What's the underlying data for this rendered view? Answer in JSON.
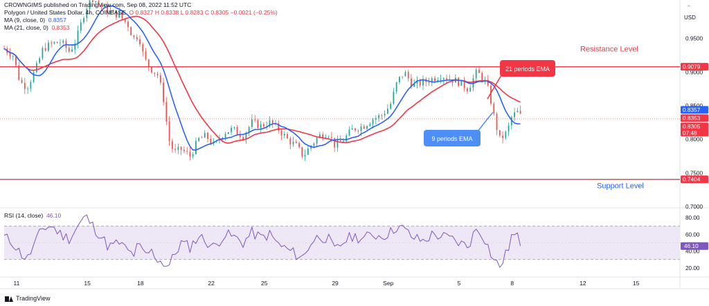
{
  "header": {
    "published": "CROWNGIMS published on TradingView.com, Sep 08, 2022 11:52 UTC",
    "symbol": "Polygon / United States Dollar, 4h, COINBASE",
    "ohlc": "O 0.8327  H 0.8338  L 0.8283  C 0.8305  −0.0021 (−0.25%)",
    "ma9_label": "MA (9, close, 0)",
    "ma9_value": "0.8357",
    "ma21_label": "MA (21, close, 0)",
    "ma21_value": "0.8353",
    "rsi_label": "RSI (14, close)",
    "rsi_value": "46.10"
  },
  "brand": {
    "name": "TradingView"
  },
  "colors": {
    "up": "#26a69a",
    "down": "#ef5350",
    "ma9": "#2962ff",
    "ma21": "#f23645",
    "level": "#f23645",
    "rsi": "#7e57c2",
    "rsi_band": "#ede7f6"
  },
  "chart_data": [
    {
      "type": "candlestick",
      "symbol": "Polygon / United States Dollar, 4h, COINBASE",
      "currency": "USD",
      "ylim": [
        0.7,
        1.0
      ],
      "y_ticks": [
        0.95,
        0.9,
        0.85,
        0.8,
        0.75,
        0.7
      ],
      "y_tick_labels": [
        "0.9500",
        "0.9000",
        "0.8500",
        "0.8000",
        "0.7500",
        "0.7000"
      ],
      "x_ticks": [
        {
          "day": 11,
          "label": "11"
        },
        {
          "day": 15,
          "label": "15"
        },
        {
          "day": 18,
          "label": "18"
        },
        {
          "day": 22,
          "label": "22"
        },
        {
          "day": 25,
          "label": "25"
        },
        {
          "day": 29,
          "label": "29"
        },
        {
          "day": 32,
          "label": "Sep"
        },
        {
          "day": 36,
          "label": "5"
        },
        {
          "day": 39,
          "label": "8"
        },
        {
          "day": 43,
          "label": "12"
        },
        {
          "day": 46,
          "label": "15"
        }
      ],
      "xlim_days": [
        10.3,
        48.4
      ],
      "close_path": [
        [
          10.3,
          0.935
        ],
        [
          10.8,
          0.925
        ],
        [
          11.2,
          0.885
        ],
        [
          11.6,
          0.878
        ],
        [
          12.1,
          0.905
        ],
        [
          12.5,
          0.935
        ],
        [
          13.0,
          0.942
        ],
        [
          13.5,
          0.945
        ],
        [
          14.0,
          0.93
        ],
        [
          14.4,
          0.95
        ],
        [
          14.9,
          0.995
        ],
        [
          15.3,
          1.01
        ],
        [
          15.7,
          1.0
        ],
        [
          16.2,
          0.99
        ],
        [
          16.8,
          0.985
        ],
        [
          17.3,
          0.97
        ],
        [
          17.6,
          0.95
        ],
        [
          17.9,
          0.955
        ],
        [
          18.2,
          0.92
        ],
        [
          18.6,
          0.905
        ],
        [
          19.0,
          0.895
        ],
        [
          19.3,
          0.86
        ],
        [
          19.6,
          0.8
        ],
        [
          19.9,
          0.78
        ],
        [
          20.3,
          0.785
        ],
        [
          20.8,
          0.775
        ],
        [
          21.3,
          0.8
        ],
        [
          21.7,
          0.805
        ],
        [
          22.2,
          0.79
        ],
        [
          22.7,
          0.81
        ],
        [
          23.2,
          0.815
        ],
        [
          23.8,
          0.805
        ],
        [
          24.3,
          0.825
        ],
        [
          24.8,
          0.82
        ],
        [
          25.3,
          0.825
        ],
        [
          25.8,
          0.815
        ],
        [
          26.3,
          0.8
        ],
        [
          26.8,
          0.79
        ],
        [
          27.2,
          0.775
        ],
        [
          27.6,
          0.79
        ],
        [
          28.1,
          0.805
        ],
        [
          28.6,
          0.81
        ],
        [
          29.0,
          0.79
        ],
        [
          29.5,
          0.8
        ],
        [
          30.0,
          0.815
        ],
        [
          30.6,
          0.82
        ],
        [
          31.1,
          0.83
        ],
        [
          31.6,
          0.835
        ],
        [
          32.1,
          0.85
        ],
        [
          32.5,
          0.885
        ],
        [
          32.9,
          0.9
        ],
        [
          33.4,
          0.88
        ],
        [
          34.0,
          0.885
        ],
        [
          34.5,
          0.89
        ],
        [
          35.0,
          0.895
        ],
        [
          35.5,
          0.89
        ],
        [
          36.0,
          0.885
        ],
        [
          36.5,
          0.875
        ],
        [
          37.0,
          0.9
        ],
        [
          37.4,
          0.89
        ],
        [
          37.7,
          0.87
        ],
        [
          38.0,
          0.83
        ],
        [
          38.3,
          0.8
        ],
        [
          38.7,
          0.81
        ],
        [
          39.0,
          0.835
        ],
        [
          39.3,
          0.84
        ],
        [
          39.6,
          0.8305
        ]
      ],
      "series": [
        {
          "name": "MA (9, close, 0)",
          "last_value": 0.8357
        },
        {
          "name": "MA (21, close, 0)",
          "last_value": 0.8353
        }
      ],
      "price_labels": [
        {
          "value": 0.9079,
          "label": "0.9079",
          "color": "#f23645"
        },
        {
          "value": 0.8357,
          "label": "0.8357",
          "color": "#2962ff"
        },
        {
          "value": 0.8353,
          "label": "0.8353",
          "color": "#f23645"
        },
        {
          "value": 0.8305,
          "label": "0.8305",
          "color": "#f23645",
          "sub": "07:48"
        },
        {
          "value": 0.7404,
          "label": "0.7404",
          "color": "#f23645"
        }
      ],
      "horizontal_levels": [
        {
          "value": 0.9079,
          "text": "Resistance Level"
        },
        {
          "value": 0.7404,
          "text": "Support Level"
        }
      ],
      "annotations": [
        {
          "text": "21 periods EMA",
          "pointer_day": 37.6,
          "pointer_value": 0.86,
          "color": "#f23645"
        },
        {
          "text": "9 periods EMA",
          "pointer_day": 37.9,
          "pointer_value": 0.84,
          "color": "#2962ff"
        }
      ]
    },
    {
      "type": "line",
      "name": "RSI (14, close)",
      "last_value": 46.1,
      "ylim": [
        10,
        90
      ],
      "y_ticks": [
        80,
        60,
        40,
        20
      ],
      "y_tick_labels": [
        "80.00",
        "60.00",
        "40.00",
        "20.00"
      ],
      "bands": [
        70,
        30
      ],
      "rsi_path": [
        [
          10.3,
          57
        ],
        [
          10.8,
          50
        ],
        [
          11.2,
          38
        ],
        [
          11.6,
          30
        ],
        [
          12.1,
          52
        ],
        [
          12.5,
          68
        ],
        [
          13.0,
          70
        ],
        [
          13.5,
          60
        ],
        [
          14.0,
          55
        ],
        [
          14.4,
          68
        ],
        [
          14.9,
          82
        ],
        [
          15.3,
          70
        ],
        [
          15.7,
          60
        ],
        [
          16.2,
          45
        ],
        [
          16.8,
          50
        ],
        [
          17.3,
          40
        ],
        [
          17.6,
          35
        ],
        [
          17.9,
          48
        ],
        [
          18.2,
          35
        ],
        [
          18.6,
          40
        ],
        [
          19.0,
          30
        ],
        [
          19.3,
          26
        ],
        [
          19.6,
          22
        ],
        [
          19.9,
          35
        ],
        [
          20.3,
          50
        ],
        [
          20.8,
          45
        ],
        [
          21.3,
          58
        ],
        [
          21.7,
          52
        ],
        [
          22.2,
          44
        ],
        [
          22.7,
          60
        ],
        [
          23.2,
          58
        ],
        [
          23.8,
          50
        ],
        [
          24.3,
          62
        ],
        [
          24.8,
          56
        ],
        [
          25.3,
          60
        ],
        [
          25.8,
          48
        ],
        [
          26.3,
          42
        ],
        [
          26.8,
          36
        ],
        [
          27.2,
          32
        ],
        [
          27.6,
          50
        ],
        [
          28.1,
          58
        ],
        [
          28.6,
          55
        ],
        [
          29.0,
          40
        ],
        [
          29.5,
          52
        ],
        [
          30.0,
          58
        ],
        [
          30.6,
          55
        ],
        [
          31.1,
          60
        ],
        [
          31.6,
          58
        ],
        [
          32.1,
          62
        ],
        [
          32.5,
          70
        ],
        [
          32.9,
          66
        ],
        [
          33.4,
          56
        ],
        [
          34.0,
          52
        ],
        [
          34.5,
          60
        ],
        [
          35.0,
          58
        ],
        [
          35.5,
          55
        ],
        [
          36.0,
          50
        ],
        [
          36.5,
          46
        ],
        [
          37.0,
          68
        ],
        [
          37.4,
          58
        ],
        [
          37.7,
          42
        ],
        [
          38.0,
          28
        ],
        [
          38.3,
          22
        ],
        [
          38.7,
          38
        ],
        [
          39.0,
          60
        ],
        [
          39.3,
          56
        ],
        [
          39.6,
          46.1
        ]
      ]
    }
  ]
}
